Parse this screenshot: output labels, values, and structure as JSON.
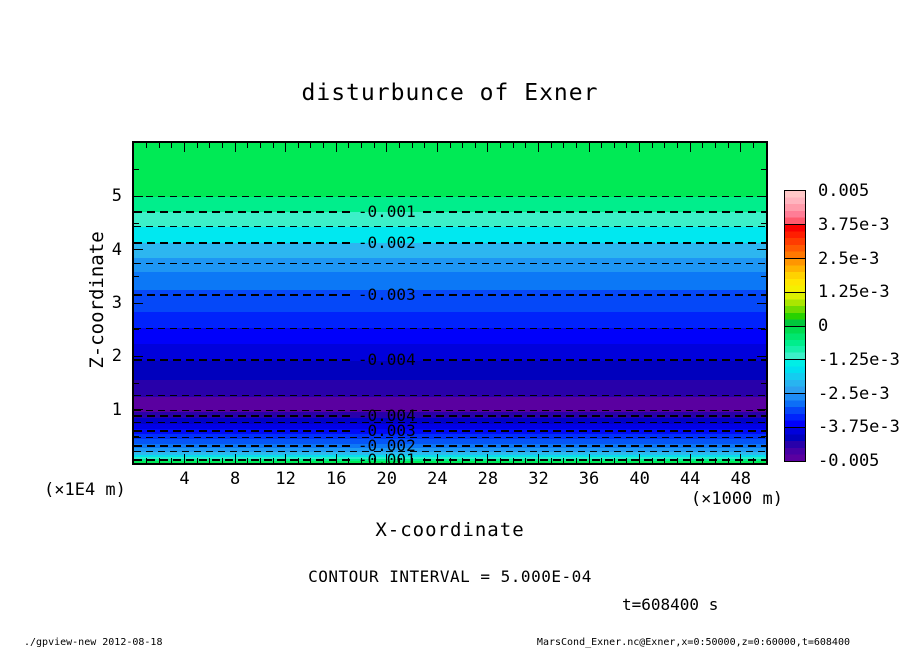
{
  "title": "disturbunce of Exner",
  "axes": {
    "x": {
      "label": "X-coordinate",
      "unit": "(×1000 m)",
      "min": 0,
      "max": 50,
      "major_tick_step": 4,
      "minor_tick_step": 1,
      "tick_labels": [
        "4",
        "8",
        "12",
        "16",
        "20",
        "24",
        "28",
        "32",
        "36",
        "40",
        "44",
        "48"
      ]
    },
    "y": {
      "label": "Z-coordinate",
      "unit": "(×1E4 m)",
      "min": 0,
      "max": 6,
      "major_tick_step": 1,
      "minor_tick_step": 0.5,
      "tick_labels": [
        "1",
        "2",
        "3",
        "4",
        "5"
      ]
    }
  },
  "annotations": {
    "contour_interval_text": "CONTOUR INTERVAL = 5.000E-04",
    "time_text": "t=608400 s"
  },
  "footer": {
    "left": "./gpview-new  2012-08-18",
    "right": "MarsCond_Exner.nc@Exner,x=0:50000,z=0:60000,t=608400"
  },
  "chart_data": {
    "type": "heatmap",
    "subtype": "filled-contour",
    "title": "disturbunce of Exner",
    "xlabel": "X-coordinate (×1000 m)",
    "ylabel": "Z-coordinate (×1E4 m)",
    "x_range": [
      0,
      50
    ],
    "z_range": [
      0,
      6
    ],
    "contour_interval": 0.0005,
    "value_range": [
      -0.005,
      0.005
    ],
    "field_note": "field is horizontally uniform; value varies only with z",
    "z_profile": [
      [
        6.0,
        -0.0002
      ],
      [
        5.0,
        -0.0005
      ],
      [
        4.71,
        -0.001
      ],
      [
        4.13,
        -0.002
      ],
      [
        3.15,
        -0.003
      ],
      [
        1.93,
        -0.004
      ],
      [
        1.26,
        -0.0045
      ],
      [
        1.1,
        -0.0048
      ],
      [
        0.98,
        -0.0045
      ],
      [
        0.88,
        -0.004
      ],
      [
        0.6,
        -0.003
      ],
      [
        0.32,
        -0.002
      ],
      [
        0.06,
        -0.001
      ],
      [
        0.0,
        -0.0008
      ]
    ],
    "band_boundaries_z": [
      6.0,
      4.99,
      4.71,
      4.43,
      4.13,
      3.84,
      3.58,
      3.24,
      2.83,
      2.53,
      2.23,
      1.91,
      1.56,
      1.24,
      0.96,
      0.84,
      0.73,
      0.64,
      0.54,
      0.45,
      0.36,
      0.28,
      0.21,
      0.15,
      0.11,
      0.075,
      0.04,
      0.0
    ],
    "band_colors": [
      "#00EA55",
      "#00EE8C",
      "#3CF0C8",
      "#00E8F0",
      "#2DB6F0",
      "#1E96F4",
      "#0C78F6",
      "#0548F8",
      "#0023FB",
      "#0000FA",
      "#0000DC",
      "#0000BE",
      "#2800AA",
      "#5A00A0",
      "#2800AA",
      "#0000C8",
      "#0000E8",
      "#000AFA",
      "#0032F9",
      "#0556F7",
      "#0C78F6",
      "#1E9AF3",
      "#2DB9EF",
      "#00E2EE",
      "#2BEFC9",
      "#00EE8C",
      "#00EA55"
    ],
    "contours": [
      {
        "z": 4.99,
        "weight": "thin",
        "label": null
      },
      {
        "z": 4.71,
        "weight": "thick",
        "label": "-0.001"
      },
      {
        "z": 4.43,
        "weight": "thin",
        "label": null
      },
      {
        "z": 4.13,
        "weight": "thick",
        "label": "-0.002"
      },
      {
        "z": 3.75,
        "weight": "thin",
        "label": null
      },
      {
        "z": 3.15,
        "weight": "thick",
        "label": "-0.003"
      },
      {
        "z": 2.53,
        "weight": "thin",
        "label": null
      },
      {
        "z": 1.93,
        "weight": "thick",
        "label": "-0.004"
      },
      {
        "z": 1.26,
        "weight": "thin",
        "label": null
      },
      {
        "z": 0.98,
        "weight": "thin",
        "label": null
      },
      {
        "z": 0.88,
        "weight": "thick",
        "label": "-0.004"
      },
      {
        "z": 0.76,
        "weight": "thin",
        "label": null
      },
      {
        "z": 0.6,
        "weight": "thick",
        "label": "-0.003"
      },
      {
        "z": 0.47,
        "weight": "thin",
        "label": null
      },
      {
        "z": 0.32,
        "weight": "thick",
        "label": "-0.002"
      },
      {
        "z": 0.21,
        "weight": "thin",
        "label": null
      },
      {
        "z": 0.06,
        "weight": "thick",
        "label": "-0.001"
      }
    ],
    "contour_label_x_frac": 0.4,
    "colorbar": {
      "labels": [
        "0.005",
        "3.75e-3",
        "2.5e-3",
        "1.25e-3",
        "0",
        "-1.25e-3",
        "-2.5e-3",
        "-3.75e-3",
        "-0.005"
      ],
      "segments": [
        [
          "#FFC8C8",
          "#FFB4BE",
          "#FF9BAA",
          "#FF7D96",
          "#FF5A6E"
        ],
        [
          "#FA0000",
          "#FF1E00",
          "#FF3C00",
          "#FF5A00",
          "#FF7800"
        ],
        [
          "#FF9600",
          "#FFB400",
          "#FFD200",
          "#FFE600",
          "#F5F000"
        ],
        [
          "#DCF000",
          "#AAE600",
          "#6EDC00",
          "#28D200",
          "#00C83C"
        ],
        [
          "#00DC50",
          "#00E66E",
          "#00EE8C",
          "#14F0AA",
          "#3CF0C8"
        ],
        [
          "#00EEE6",
          "#00E0F0",
          "#14CCF0",
          "#28B4F0",
          "#2D9FF0"
        ],
        [
          "#1E8CF5",
          "#0C6EF7",
          "#0546F8",
          "#0023FB",
          "#0000FA"
        ],
        [
          "#0000DC",
          "#0000BE",
          "#2800AA",
          "#4600A5",
          "#5A00A0"
        ]
      ]
    }
  }
}
